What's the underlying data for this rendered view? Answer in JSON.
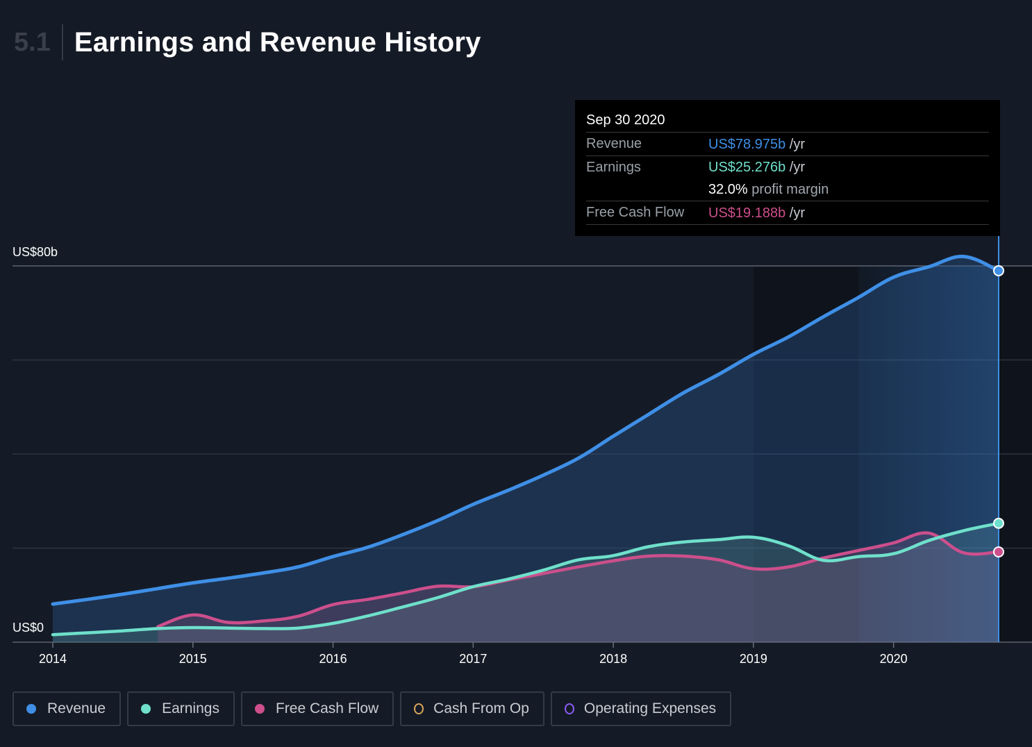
{
  "header": {
    "section_number": "5.1",
    "title": "Earnings and Revenue History"
  },
  "tooltip": {
    "date": "Sep 30 2020",
    "revenue_label": "Revenue",
    "revenue_value": "US$78.975b",
    "earnings_label": "Earnings",
    "earnings_value": "US$25.276b",
    "margin_value": "32.0%",
    "margin_label": "profit margin",
    "fcf_label": "Free Cash Flow",
    "fcf_value": "US$19.188b",
    "unit": "/yr"
  },
  "legend": [
    {
      "label": "Revenue",
      "color": "#3f8fe6",
      "style": "filled"
    },
    {
      "label": "Earnings",
      "color": "#6fe0cb",
      "style": "filled"
    },
    {
      "label": "Free Cash Flow",
      "color": "#cc4f8c",
      "style": "filled"
    },
    {
      "label": "Cash From Op",
      "color": "#d9a45a",
      "style": "outline"
    },
    {
      "label": "Operating Expenses",
      "color": "#8b5cf6",
      "style": "outline"
    }
  ],
  "chart_data": {
    "type": "area",
    "y_tick_labels": [
      "US$0",
      "US$80b"
    ],
    "y_range": [
      0,
      80
    ],
    "y_gridlines": [
      0,
      20,
      40,
      60,
      80
    ],
    "x_range": [
      2014,
      2020.75
    ],
    "x_ticks": [
      "2014",
      "2015",
      "2016",
      "2017",
      "2018",
      "2019",
      "2020"
    ],
    "colors": {
      "revenue": "#3f8fe6",
      "earnings": "#6fe0cb",
      "fcf": "#cc4f8c"
    },
    "highlight_from": 2019.75,
    "series": [
      {
        "key": "revenue",
        "name": "Revenue",
        "x": [
          2014.0,
          2014.25,
          2014.5,
          2014.75,
          2015.0,
          2015.25,
          2015.5,
          2015.75,
          2016.0,
          2016.25,
          2016.5,
          2016.75,
          2017.0,
          2017.25,
          2017.5,
          2017.75,
          2018.0,
          2018.25,
          2018.5,
          2018.75,
          2019.0,
          2019.25,
          2019.5,
          2019.75,
          2020.0,
          2020.25,
          2020.5,
          2020.75
        ],
        "values": [
          8.1,
          9.1,
          10.2,
          11.4,
          12.6,
          13.6,
          14.7,
          16.0,
          18.2,
          20.2,
          22.9,
          25.9,
          29.3,
          32.3,
          35.5,
          39.1,
          43.8,
          48.4,
          53.0,
          56.9,
          61.2,
          64.9,
          69.2,
          73.3,
          77.6,
          79.8,
          82.0,
          78.975
        ]
      },
      {
        "key": "earnings",
        "name": "Earnings",
        "x": [
          2014.0,
          2014.25,
          2014.5,
          2014.75,
          2015.0,
          2015.25,
          2015.5,
          2015.75,
          2016.0,
          2016.25,
          2016.5,
          2016.75,
          2017.0,
          2017.25,
          2017.5,
          2017.75,
          2018.0,
          2018.25,
          2018.5,
          2018.75,
          2019.0,
          2019.25,
          2019.5,
          2019.75,
          2020.0,
          2020.25,
          2020.5,
          2020.75
        ],
        "values": [
          1.6,
          2.0,
          2.4,
          2.9,
          3.1,
          3.0,
          2.9,
          3.0,
          4.0,
          5.6,
          7.5,
          9.5,
          11.8,
          13.4,
          15.3,
          17.5,
          18.4,
          20.3,
          21.3,
          21.8,
          22.3,
          20.5,
          17.4,
          18.2,
          18.8,
          21.6,
          23.7,
          25.276
        ]
      },
      {
        "key": "fcf",
        "name": "Free Cash Flow",
        "x": [
          2014.75,
          2015.0,
          2015.25,
          2015.5,
          2015.75,
          2016.0,
          2016.25,
          2016.5,
          2016.75,
          2017.0,
          2017.25,
          2017.5,
          2017.75,
          2018.0,
          2018.25,
          2018.5,
          2018.75,
          2019.0,
          2019.25,
          2019.5,
          2019.75,
          2020.0,
          2020.25,
          2020.5,
          2020.75
        ],
        "values": [
          3.3,
          5.8,
          4.2,
          4.5,
          5.5,
          8.0,
          9.1,
          10.5,
          11.9,
          11.8,
          13.2,
          14.6,
          16.0,
          17.3,
          18.3,
          18.3,
          17.5,
          15.6,
          16.0,
          17.9,
          19.5,
          21.1,
          23.2,
          19.0,
          19.188
        ]
      }
    ]
  }
}
